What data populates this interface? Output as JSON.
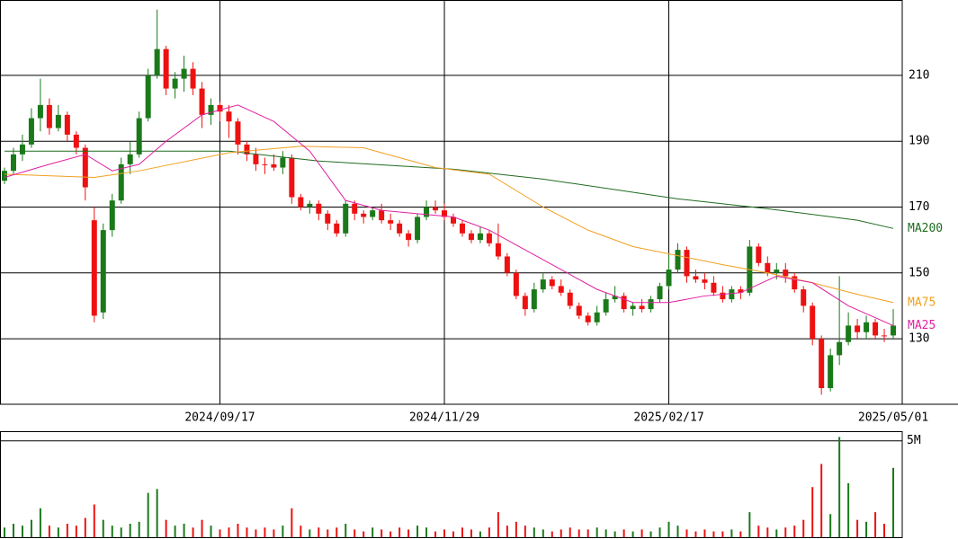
{
  "chart_data": {
    "type": "candlestick",
    "xlim": [
      -0.5,
      100
    ],
    "xticks": [
      {
        "value": 24,
        "label": "2024/09/17"
      },
      {
        "value": 49,
        "label": "2024/11/29"
      },
      {
        "value": 74,
        "label": "2025/02/17"
      },
      {
        "value": 99,
        "label": "2025/05/01"
      }
    ],
    "ylim": [
      110.1,
      232.9
    ],
    "yticks": [
      130,
      150,
      170,
      190,
      210
    ],
    "grid": true,
    "up_color": "#1a7a1a",
    "down_color": "#ee1111",
    "ohlc": [
      [
        178,
        182,
        177,
        181
      ],
      [
        181,
        188,
        180,
        186
      ],
      [
        186,
        192,
        184,
        189
      ],
      [
        189,
        200,
        188,
        197
      ],
      [
        197,
        209,
        193,
        201
      ],
      [
        201,
        203,
        192,
        194
      ],
      [
        194,
        201,
        193,
        198
      ],
      [
        198,
        199,
        190,
        192
      ],
      [
        192,
        193,
        186,
        188
      ],
      [
        188,
        189,
        172,
        176
      ],
      [
        166,
        170,
        135,
        137
      ],
      [
        138,
        165,
        136,
        163
      ],
      [
        163,
        174,
        161,
        172
      ],
      [
        172,
        185,
        171,
        183
      ],
      [
        183,
        190,
        180,
        186
      ],
      [
        186,
        199,
        185,
        197
      ],
      [
        197,
        212,
        196,
        210
      ],
      [
        210,
        230,
        209,
        218
      ],
      [
        218,
        219,
        204,
        206
      ],
      [
        206,
        211,
        203,
        209
      ],
      [
        209,
        216,
        205,
        212
      ],
      [
        212,
        214,
        204,
        206
      ],
      [
        206,
        208,
        194,
        198
      ],
      [
        198,
        203,
        195,
        201
      ],
      [
        201,
        202,
        196,
        199
      ],
      [
        199,
        201,
        191,
        196
      ],
      [
        196,
        197,
        186,
        189
      ],
      [
        189,
        190,
        184,
        186
      ],
      [
        186,
        188,
        181,
        183
      ],
      [
        183,
        185,
        180,
        183
      ],
      [
        183,
        186,
        181,
        182
      ],
      [
        182,
        187,
        180,
        185
      ],
      [
        185,
        186,
        171,
        173
      ],
      [
        173,
        174,
        169,
        170
      ],
      [
        170,
        172,
        168,
        171
      ],
      [
        171,
        172,
        166,
        168
      ],
      [
        168,
        169,
        163,
        165
      ],
      [
        165,
        166,
        161,
        162
      ],
      [
        162,
        172,
        161,
        171
      ],
      [
        171,
        172,
        166,
        168
      ],
      [
        168,
        169,
        165,
        167
      ],
      [
        167,
        170,
        166,
        169
      ],
      [
        169,
        171,
        165,
        166
      ],
      [
        166,
        168,
        163,
        165
      ],
      [
        165,
        166,
        161,
        162
      ],
      [
        162,
        163,
        158,
        160
      ],
      [
        160,
        168,
        159,
        167
      ],
      [
        167,
        172,
        166,
        170
      ],
      [
        170,
        172,
        168,
        169
      ],
      [
        169,
        171,
        166,
        167
      ],
      [
        167,
        168,
        164,
        165
      ],
      [
        165,
        166,
        161,
        162
      ],
      [
        162,
        163,
        159,
        160
      ],
      [
        160,
        164,
        159,
        162
      ],
      [
        162,
        163,
        158,
        159
      ],
      [
        159,
        165,
        154,
        155
      ],
      [
        155,
        156,
        149,
        150
      ],
      [
        150,
        151,
        142,
        143
      ],
      [
        143,
        144,
        137,
        139
      ],
      [
        139,
        147,
        138,
        145
      ],
      [
        145,
        150,
        144,
        148
      ],
      [
        148,
        149,
        145,
        146
      ],
      [
        146,
        148,
        143,
        144
      ],
      [
        144,
        145,
        139,
        140
      ],
      [
        140,
        141,
        136,
        137
      ],
      [
        137,
        138,
        134,
        135
      ],
      [
        135,
        140,
        134,
        138
      ],
      [
        138,
        144,
        137,
        142
      ],
      [
        142,
        146,
        141,
        143
      ],
      [
        143,
        144,
        138,
        139
      ],
      [
        139,
        141,
        137,
        140
      ],
      [
        140,
        142,
        138,
        139
      ],
      [
        139,
        143,
        138,
        142
      ],
      [
        142,
        147,
        141,
        146
      ],
      [
        146,
        156,
        145,
        151
      ],
      [
        151,
        159,
        150,
        157
      ],
      [
        157,
        158,
        147,
        149
      ],
      [
        149,
        151,
        147,
        148
      ],
      [
        148,
        150,
        145,
        147
      ],
      [
        147,
        149,
        143,
        144
      ],
      [
        144,
        146,
        141,
        142
      ],
      [
        142,
        146,
        141,
        145
      ],
      [
        145,
        146,
        142,
        144
      ],
      [
        144,
        160,
        143,
        158
      ],
      [
        158,
        159,
        152,
        153
      ],
      [
        153,
        155,
        149,
        150
      ],
      [
        150,
        153,
        148,
        151
      ],
      [
        151,
        153,
        147,
        149
      ],
      [
        149,
        150,
        144,
        145
      ],
      [
        145,
        146,
        138,
        140
      ],
      [
        140,
        141,
        128,
        130
      ],
      [
        130,
        131,
        113,
        115
      ],
      [
        115,
        127,
        114,
        125
      ],
      [
        125,
        149,
        122,
        129
      ],
      [
        129,
        138,
        128,
        134
      ],
      [
        134,
        136,
        130,
        132
      ],
      [
        132,
        137,
        130,
        135
      ],
      [
        135,
        136,
        130,
        131
      ],
      [
        131,
        133,
        129,
        131
      ],
      [
        131,
        139,
        130,
        134
      ]
    ],
    "moving_averages": [
      {
        "name": "MA200",
        "color": "#1f6b1f",
        "x": [
          0,
          25,
          35,
          50,
          60,
          75,
          85,
          95,
          99
        ],
        "values": [
          187,
          187,
          184,
          181.5,
          178.5,
          172.5,
          169.5,
          166,
          163.5
        ]
      },
      {
        "name": "MA75",
        "color": "#f0a020",
        "x": [
          0,
          10,
          15,
          25,
          33,
          40,
          48,
          54,
          60,
          65,
          70,
          80,
          85,
          90,
          95,
          99
        ],
        "values": [
          180,
          179,
          181,
          186.5,
          188.5,
          188,
          182,
          180,
          170,
          163,
          158,
          152.5,
          150,
          147,
          143.5,
          141
        ]
      },
      {
        "name": "MA25",
        "color": "#e020a0",
        "x": [
          0,
          5,
          9,
          12,
          15,
          18,
          22,
          26,
          30,
          34,
          38,
          42,
          46,
          50,
          54,
          58,
          62,
          66,
          70,
          74,
          78,
          82,
          86,
          90,
          94,
          99
        ],
        "values": [
          179,
          183,
          186,
          181,
          183,
          190,
          198,
          201,
          196,
          187,
          172,
          169,
          168,
          167,
          163,
          157,
          151,
          145,
          141,
          141,
          143,
          144,
          149,
          147,
          140,
          134
        ]
      }
    ],
    "volume": {
      "ylim": [
        0,
        5.5
      ],
      "yticks": [
        {
          "value": 5,
          "label": "5M"
        }
      ],
      "values": [
        0.5,
        0.7,
        0.6,
        0.9,
        1.5,
        0.6,
        0.5,
        0.7,
        0.6,
        1.0,
        1.7,
        0.9,
        0.6,
        0.5,
        0.7,
        0.8,
        2.3,
        2.5,
        0.9,
        0.6,
        0.7,
        0.5,
        0.9,
        0.6,
        0.4,
        0.5,
        0.7,
        0.5,
        0.4,
        0.5,
        0.4,
        0.6,
        1.5,
        0.6,
        0.4,
        0.5,
        0.4,
        0.5,
        0.7,
        0.4,
        0.3,
        0.5,
        0.4,
        0.3,
        0.5,
        0.4,
        0.6,
        0.5,
        0.3,
        0.4,
        0.3,
        0.5,
        0.4,
        0.3,
        0.5,
        1.3,
        0.6,
        0.8,
        0.6,
        0.5,
        0.4,
        0.3,
        0.4,
        0.5,
        0.4,
        0.4,
        0.5,
        0.4,
        0.3,
        0.4,
        0.3,
        0.4,
        0.3,
        0.5,
        0.8,
        0.6,
        0.4,
        0.3,
        0.4,
        0.3,
        0.3,
        0.4,
        0.3,
        1.3,
        0.6,
        0.5,
        0.4,
        0.5,
        0.6,
        0.9,
        2.6,
        3.8,
        1.2,
        5.2,
        2.8,
        0.9,
        0.8,
        1.3,
        0.7,
        3.6
      ]
    }
  }
}
